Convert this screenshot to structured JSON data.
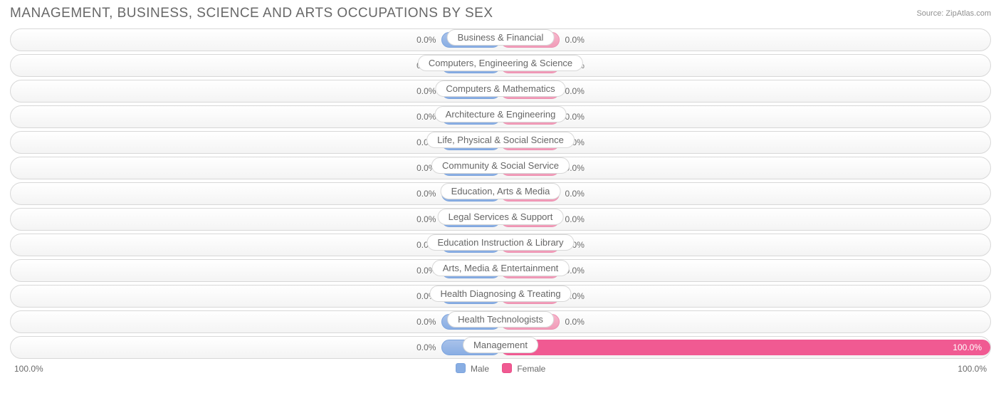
{
  "chart": {
    "title": "Management, Business, Science and Arts Occupations by Sex",
    "source": "Source: ZipAtlas.com",
    "type": "diverging-bar",
    "axis_left_label": "100.0%",
    "axis_right_label": "100.0%",
    "axis_font_size": 12,
    "title_font_size": 19,
    "title_color": "#686868",
    "label_font_size": 13,
    "pct_font_size": 12,
    "pct_color": "#6a6a6a",
    "track_border_color": "#d8d8d8",
    "track_bg_top": "#ffffff",
    "track_bg_bottom": "#f4f4f4",
    "male_bar_color": "#89aee3",
    "female_bar_color": "#f19cb9",
    "female_full_color": "#f05a92",
    "min_bar_pct": 12,
    "legend": {
      "male": "Male",
      "female": "Female"
    },
    "categories": [
      {
        "label": "Business & Financial",
        "male_pct": 0.0,
        "male_text": "0.0%",
        "female_pct": 0.0,
        "female_text": "0.0%"
      },
      {
        "label": "Computers, Engineering & Science",
        "male_pct": 0.0,
        "male_text": "0.0%",
        "female_pct": 0.0,
        "female_text": "0.0%"
      },
      {
        "label": "Computers & Mathematics",
        "male_pct": 0.0,
        "male_text": "0.0%",
        "female_pct": 0.0,
        "female_text": "0.0%"
      },
      {
        "label": "Architecture & Engineering",
        "male_pct": 0.0,
        "male_text": "0.0%",
        "female_pct": 0.0,
        "female_text": "0.0%"
      },
      {
        "label": "Life, Physical & Social Science",
        "male_pct": 0.0,
        "male_text": "0.0%",
        "female_pct": 0.0,
        "female_text": "0.0%"
      },
      {
        "label": "Community & Social Service",
        "male_pct": 0.0,
        "male_text": "0.0%",
        "female_pct": 0.0,
        "female_text": "0.0%"
      },
      {
        "label": "Education, Arts & Media",
        "male_pct": 0.0,
        "male_text": "0.0%",
        "female_pct": 0.0,
        "female_text": "0.0%"
      },
      {
        "label": "Legal Services & Support",
        "male_pct": 0.0,
        "male_text": "0.0%",
        "female_pct": 0.0,
        "female_text": "0.0%"
      },
      {
        "label": "Education Instruction & Library",
        "male_pct": 0.0,
        "male_text": "0.0%",
        "female_pct": 0.0,
        "female_text": "0.0%"
      },
      {
        "label": "Arts, Media & Entertainment",
        "male_pct": 0.0,
        "male_text": "0.0%",
        "female_pct": 0.0,
        "female_text": "0.0%"
      },
      {
        "label": "Health Diagnosing & Treating",
        "male_pct": 0.0,
        "male_text": "0.0%",
        "female_pct": 0.0,
        "female_text": "0.0%"
      },
      {
        "label": "Health Technologists",
        "male_pct": 0.0,
        "male_text": "0.0%",
        "female_pct": 0.0,
        "female_text": "0.0%"
      },
      {
        "label": "Management",
        "male_pct": 0.0,
        "male_text": "0.0%",
        "female_pct": 100.0,
        "female_text": "100.0%"
      }
    ]
  }
}
